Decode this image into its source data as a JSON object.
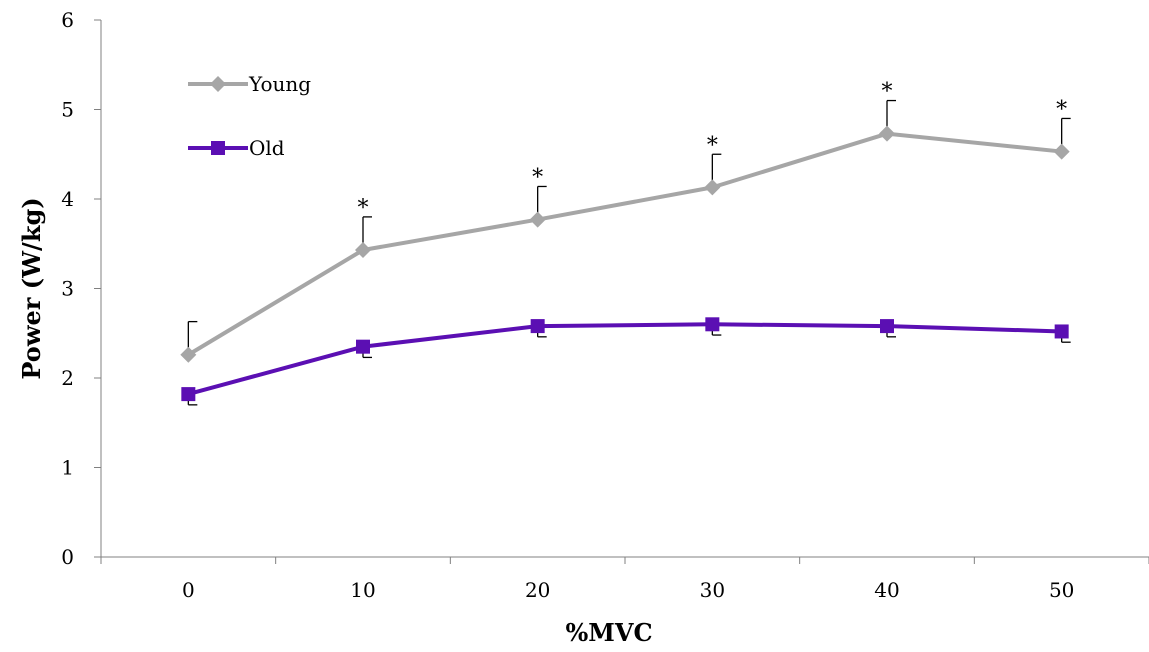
{
  "chart_data": {
    "type": "line",
    "xlabel": "%MVC",
    "ylabel": "Power (W/kg)",
    "x": [
      0,
      10,
      20,
      30,
      40,
      50
    ],
    "ylim": [
      0,
      6
    ],
    "yticks": [
      0,
      1,
      2,
      3,
      4,
      5,
      6
    ],
    "grid": false,
    "legend_position": "top-left",
    "series": [
      {
        "name": "Young",
        "color": "#a6a6a6",
        "marker": "diamond",
        "values": [
          2.26,
          3.43,
          3.77,
          4.13,
          4.73,
          4.53
        ],
        "error_up": [
          0.37,
          0.37,
          0.37,
          0.37,
          0.37,
          0.37
        ],
        "significance": [
          "",
          "*",
          "*",
          "*",
          "*",
          "*"
        ]
      },
      {
        "name": "Old",
        "color": "#5b0fb3",
        "marker": "square",
        "values": [
          1.82,
          2.35,
          2.58,
          2.6,
          2.58,
          2.52
        ],
        "error_down": [
          0.12,
          0.12,
          0.12,
          0.12,
          0.12,
          0.12
        ]
      }
    ]
  }
}
